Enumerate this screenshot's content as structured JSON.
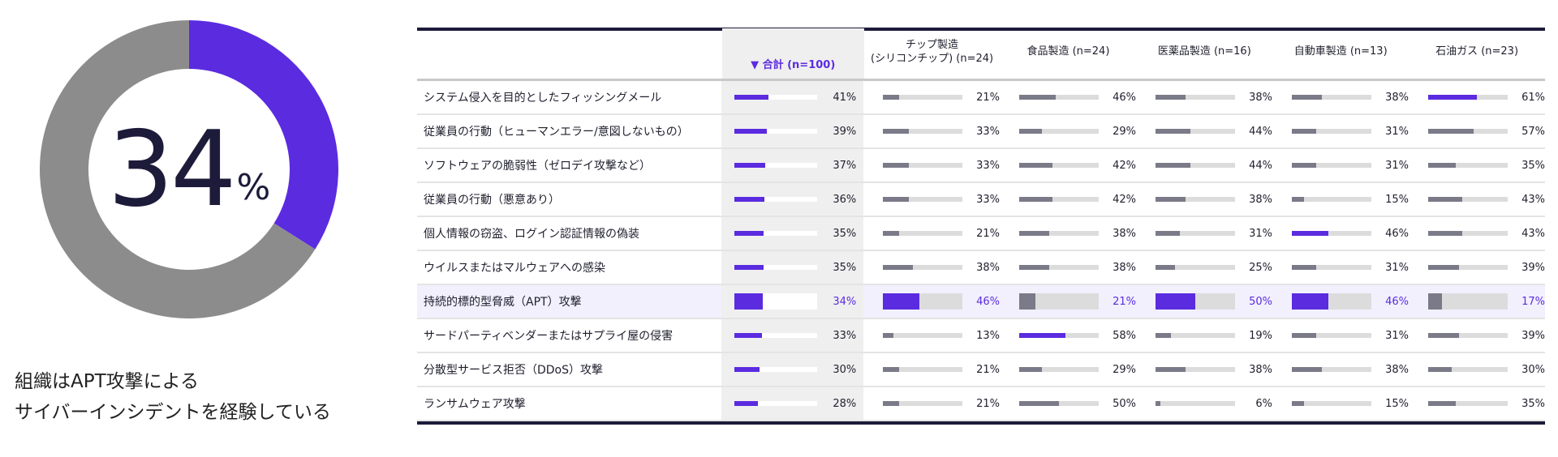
{
  "donut": {
    "value": 34,
    "value_label": "34",
    "unit": "%",
    "color_value": "#5b2be0",
    "color_rest": "#8c8c8c"
  },
  "caption": [
    "組織はAPT攻撃による",
    "サイバーインシデントを経験している"
  ],
  "chart_data": {
    "type": "table",
    "columns": [
      "▼ 合計 (n=100)",
      "チップ製造\n(シリコンチップ) (n=24)",
      "食品製造 (n=24)",
      "医薬品製造 (n=16)",
      "自動車製造 (n=13)",
      "石油ガス (n=23)"
    ],
    "rows": [
      {
        "label": "システム侵入を目的としたフィッシングメール",
        "values": [
          41,
          21,
          46,
          38,
          38,
          61
        ],
        "highlight": [
          1,
          0,
          0,
          0,
          0,
          1
        ]
      },
      {
        "label": "従業員の行動（ヒューマンエラー/意図しないもの）",
        "values": [
          39,
          33,
          29,
          44,
          31,
          57
        ],
        "highlight": [
          1,
          0,
          0,
          0,
          0,
          0
        ]
      },
      {
        "label": "ソフトウェアの脆弱性（ゼロデイ攻撃など）",
        "values": [
          37,
          33,
          42,
          44,
          31,
          35
        ],
        "highlight": [
          1,
          0,
          0,
          0,
          0,
          0
        ]
      },
      {
        "label": "従業員の行動（悪意あり）",
        "values": [
          36,
          33,
          42,
          38,
          15,
          43
        ],
        "highlight": [
          1,
          0,
          0,
          0,
          0,
          0
        ]
      },
      {
        "label": "個人情報の窃盗、ログイン認証情報の偽装",
        "values": [
          35,
          21,
          38,
          31,
          46,
          43
        ],
        "highlight": [
          1,
          0,
          0,
          0,
          1,
          0
        ]
      },
      {
        "label": "ウイルスまたはマルウェアへの感染",
        "values": [
          35,
          38,
          38,
          25,
          31,
          39
        ],
        "highlight": [
          1,
          0,
          0,
          0,
          0,
          0
        ]
      },
      {
        "label": "持続的標的型脅威（APT）攻撃",
        "values": [
          34,
          46,
          21,
          50,
          46,
          17
        ],
        "highlight": [
          1,
          1,
          0,
          1,
          1,
          0
        ],
        "row_highlight": true
      },
      {
        "label": "サードパーティベンダーまたはサプライ屋の侵害",
        "values": [
          33,
          13,
          58,
          19,
          31,
          39
        ],
        "highlight": [
          1,
          0,
          1,
          0,
          0,
          0
        ]
      },
      {
        "label": "分散型サービス拒否（DDoS）攻撃",
        "values": [
          30,
          21,
          29,
          38,
          38,
          30
        ],
        "highlight": [
          1,
          0,
          0,
          0,
          0,
          0
        ]
      },
      {
        "label": "ランサムウェア攻撃",
        "values": [
          28,
          21,
          50,
          6,
          15,
          35
        ],
        "highlight": [
          1,
          0,
          0,
          0,
          0,
          0
        ]
      }
    ],
    "unit": "%"
  }
}
